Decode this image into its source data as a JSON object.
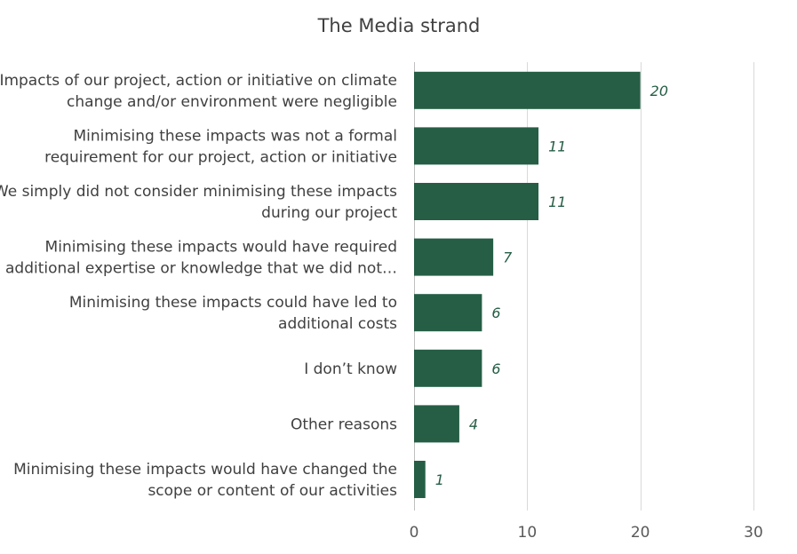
{
  "chart_data": {
    "type": "bar",
    "orientation": "horizontal",
    "title": "The Media strand",
    "xlabel": "",
    "ylabel": "",
    "xlim": [
      0,
      30
    ],
    "x_ticks": [
      0,
      10,
      20,
      30
    ],
    "grid": true,
    "legend": "none",
    "bar_color": "#255e45",
    "label_color": "#255e45",
    "categories": [
      [
        "Impacts of our project, action or initiative on climate",
        "change and/or environment were negligible"
      ],
      [
        "Minimising these impacts was not a formal",
        "requirement for our project, action or initiative"
      ],
      [
        "We simply did not consider minimising these impacts",
        "during our project"
      ],
      [
        "Minimising these impacts would have required",
        "additional expertise or knowledge that we did not…"
      ],
      [
        "Minimising these impacts could have led to",
        "additional costs"
      ],
      [
        "I don’t know"
      ],
      [
        "Other reasons"
      ],
      [
        "Minimising these impacts would have changed the",
        "scope or content of our activities"
      ]
    ],
    "values": [
      20,
      11,
      11,
      7,
      6,
      6,
      4,
      1
    ]
  }
}
